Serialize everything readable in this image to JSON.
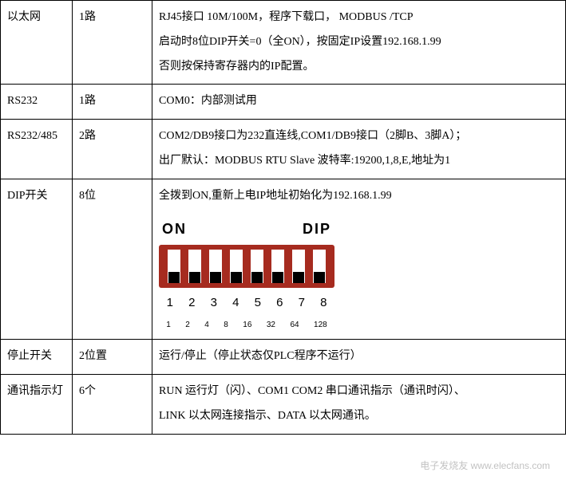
{
  "table": {
    "rows": [
      {
        "name": "以太网",
        "spec": "1路",
        "desc_lines": [
          "RJ45接口  10M/100M，程序下载口，  MODBUS /TCP",
          "启动时8位DIP开关=0（全ON），按固定IP设置192.168.1.99",
          "否则按保持寄存器内的IP配置。"
        ],
        "has_dip": false
      },
      {
        "name": "RS232",
        "spec": "1路",
        "desc_lines": [
          "COM0：内部测试用"
        ],
        "has_dip": false
      },
      {
        "name": "RS232/485",
        "spec": "2路",
        "desc_lines": [
          "COM2/DB9接口为232直连线,COM1/DB9接口（2脚B、3脚A）；",
          "出厂默认：MODBUS RTU Slave 波特率:19200,1,8,E,地址为1"
        ],
        "has_dip": false
      },
      {
        "name": "DIP开关",
        "spec": "8位",
        "desc_lines": [
          "全拨到ON,重新上电IP地址初始化为192.168.1.99"
        ],
        "has_dip": true
      },
      {
        "name": "停止开关",
        "spec": "2位置",
        "desc_lines": [
          "运行/停止（停止状态仅PLC程序不运行）"
        ],
        "has_dip": false
      },
      {
        "name": "通讯指示灯",
        "spec": "6个",
        "desc_lines": [
          "RUN 运行灯（闪）、COM1 COM2  串口通讯指示（通讯时闪）、",
          "LINK 以太网连接指示、DATA 以太网通讯。"
        ],
        "has_dip": false
      }
    ]
  },
  "dip_switch": {
    "label_on": "ON",
    "label_dip": "DIP",
    "switch_count": 8,
    "body_color": "#a62b1f",
    "slot_color": "#ffffff",
    "slider_color": "#000000",
    "numbers": [
      "1",
      "2",
      "3",
      "4",
      "5",
      "6",
      "7",
      "8"
    ],
    "values": [
      "1",
      "2",
      "4",
      "8",
      "16",
      "32",
      "64",
      "128"
    ]
  },
  "watermark": "www.elecfans.com",
  "watermark_brand": "电子发烧友"
}
